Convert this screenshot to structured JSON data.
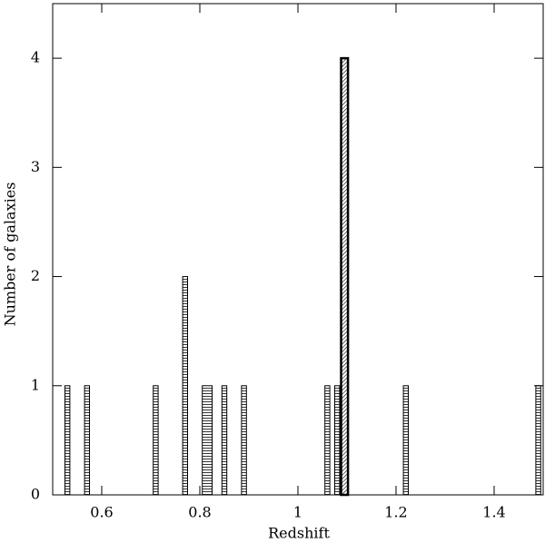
{
  "chart_data": {
    "type": "histogram",
    "x_label": "Redshift",
    "y_label": "Number of galaxies",
    "xlim": [
      0.5,
      1.5
    ],
    "ylim": [
      0,
      4.5
    ],
    "xticks": [
      0.6,
      0.8,
      1,
      1.2,
      1.4
    ],
    "yticks": [
      0,
      1,
      2,
      3,
      4
    ],
    "series": [
      {
        "color": "#000000",
        "hatch": "horizontal",
        "bins": [
          0.525,
          0.535,
          0.565,
          0.575,
          0.705,
          0.715,
          0.765,
          0.775,
          0.805,
          0.825,
          0.845,
          0.855,
          0.885,
          0.895,
          1.055,
          1.065,
          1.075,
          1.085,
          1.215,
          1.225,
          1.485,
          1.495
        ],
        "values": [
          1,
          0,
          1,
          0,
          1,
          0,
          2,
          0,
          1,
          0,
          1,
          0,
          1,
          0,
          1,
          0,
          1,
          0,
          1,
          0,
          1
        ]
      },
      {
        "color": "#000000",
        "hatch": "diagonal",
        "bins": [
          1.088,
          1.102
        ],
        "values": [
          4
        ]
      }
    ]
  }
}
